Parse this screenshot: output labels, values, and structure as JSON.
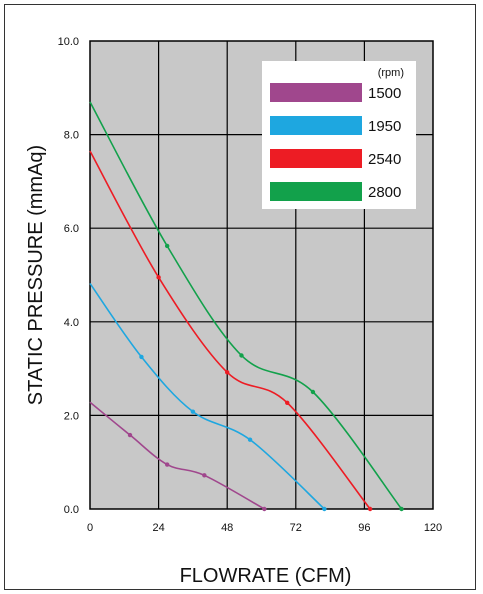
{
  "chart_data": {
    "type": "line",
    "title": "",
    "xlabel": "FLOWRATE (CFM)",
    "ylabel": "STATIC PRESSURE (mmAq)",
    "xlim": [
      0,
      120
    ],
    "ylim": [
      0,
      10
    ],
    "x_ticks": [
      0,
      24,
      48,
      72,
      96,
      120
    ],
    "y_ticks": [
      0,
      2,
      4,
      6,
      8,
      10
    ],
    "x_tick_labels": [
      "0",
      "24",
      "48",
      "72",
      "96",
      "120"
    ],
    "y_tick_labels": [
      "0.0",
      "2.0",
      "4.0",
      "6.0",
      "8.0",
      "10.0"
    ],
    "grid": true,
    "legend_unit": "(rpm)",
    "legend_position": "top-right",
    "series": [
      {
        "name": "1500",
        "color": "#a0478d",
        "points": [
          [
            0,
            2.28
          ],
          [
            14,
            1.58
          ],
          [
            27,
            0.95
          ],
          [
            40,
            0.72
          ],
          [
            61,
            0.0
          ]
        ],
        "markers": [
          [
            14,
            1.58
          ],
          [
            27,
            0.95
          ],
          [
            40,
            0.72
          ],
          [
            61,
            0.0
          ]
        ]
      },
      {
        "name": "1950",
        "color": "#1ea7e0",
        "points": [
          [
            0,
            4.82
          ],
          [
            18,
            3.25
          ],
          [
            36,
            2.08
          ],
          [
            56,
            1.48
          ],
          [
            82,
            0.0
          ]
        ],
        "markers": [
          [
            18,
            3.25
          ],
          [
            36,
            2.08
          ],
          [
            56,
            1.48
          ],
          [
            82,
            0.0
          ]
        ]
      },
      {
        "name": "2540",
        "color": "#ed1c24",
        "points": [
          [
            0,
            7.65
          ],
          [
            24,
            4.95
          ],
          [
            48,
            2.92
          ],
          [
            69,
            2.27
          ],
          [
            98,
            0.0
          ]
        ],
        "markers": [
          [
            24,
            4.95
          ],
          [
            48,
            2.92
          ],
          [
            69,
            2.27
          ],
          [
            98,
            0.0
          ]
        ]
      },
      {
        "name": "2800",
        "color": "#12a14b",
        "points": [
          [
            0,
            8.7
          ],
          [
            27,
            5.62
          ],
          [
            53,
            3.28
          ],
          [
            78,
            2.5
          ],
          [
            109,
            0.0
          ]
        ],
        "markers": [
          [
            27,
            5.62
          ],
          [
            53,
            3.28
          ],
          [
            78,
            2.5
          ],
          [
            109,
            0.0
          ]
        ]
      }
    ]
  }
}
